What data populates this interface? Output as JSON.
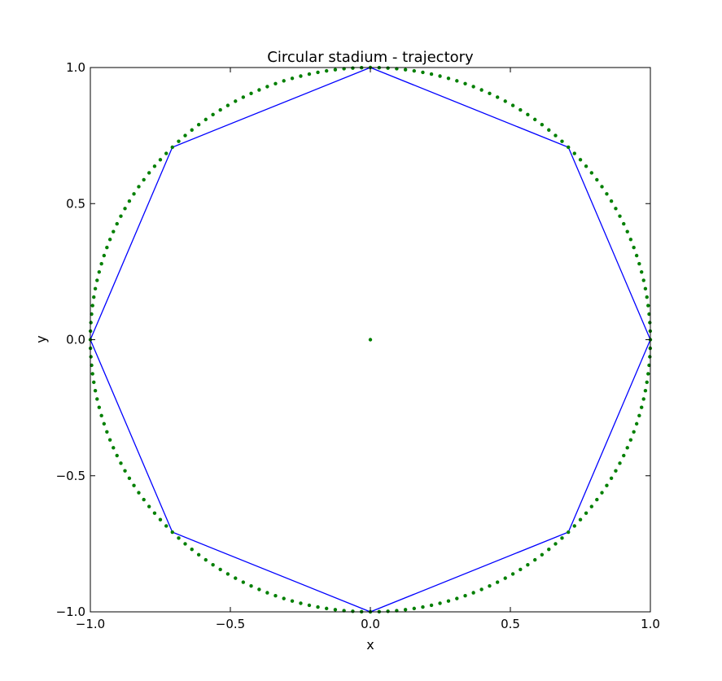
{
  "chart_data": {
    "type": "line",
    "title": "Circular stadium - trajectory",
    "xlabel": "x",
    "ylabel": "y",
    "xlim": [
      -1.0,
      1.0
    ],
    "ylim": [
      -1.0,
      1.0
    ],
    "xticks": [
      -1.0,
      -0.5,
      0.0,
      0.5,
      1.0
    ],
    "yticks": [
      -1.0,
      -0.5,
      0.0,
      0.5,
      1.0
    ],
    "xtick_labels": [
      "−1.0",
      "−0.5",
      "0.0",
      "0.5",
      "1.0"
    ],
    "ytick_labels": [
      "−1.0",
      "−0.5",
      "0.0",
      "0.5",
      "1.0"
    ],
    "grid": false,
    "legend": "none",
    "series": [
      {
        "kind": "line",
        "color": "#0000ff",
        "x": [
          0.0,
          0.7071,
          1.0,
          0.7071,
          0.0,
          -0.7071,
          -1.0,
          -0.7071,
          0.0
        ],
        "y": [
          1.0,
          0.7071,
          0.0,
          -0.7071,
          -1.0,
          -0.7071,
          0.0,
          0.7071,
          1.0
        ]
      },
      {
        "kind": "scatter",
        "color": "#007f00",
        "shape": "unit-circle",
        "count": 200,
        "radius": 1.0
      },
      {
        "kind": "scatter",
        "color": "#007f00",
        "x": [
          0.0
        ],
        "y": [
          0.0
        ]
      }
    ]
  }
}
